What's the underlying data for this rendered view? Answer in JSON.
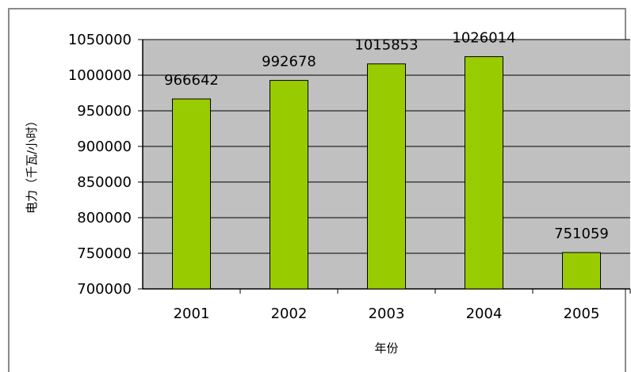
{
  "chart_data": {
    "type": "bar",
    "categories": [
      "2001",
      "2002",
      "2003",
      "2004",
      "2005"
    ],
    "values": [
      966642,
      992678,
      1015853,
      1026014,
      751059
    ],
    "xlabel": "年份",
    "ylabel": "电力（千瓦/小时）",
    "ylim": [
      700000,
      1050000
    ],
    "yticks": [
      "700000",
      "750000",
      "800000",
      "850000",
      "900000",
      "950000",
      "1000000",
      "1050000"
    ],
    "data_labels": [
      "966642",
      "992678",
      "1015853",
      "1026014",
      "751059"
    ],
    "grid": true,
    "plot_background": "#c0c0c0",
    "bar_color": "#99cc00"
  }
}
